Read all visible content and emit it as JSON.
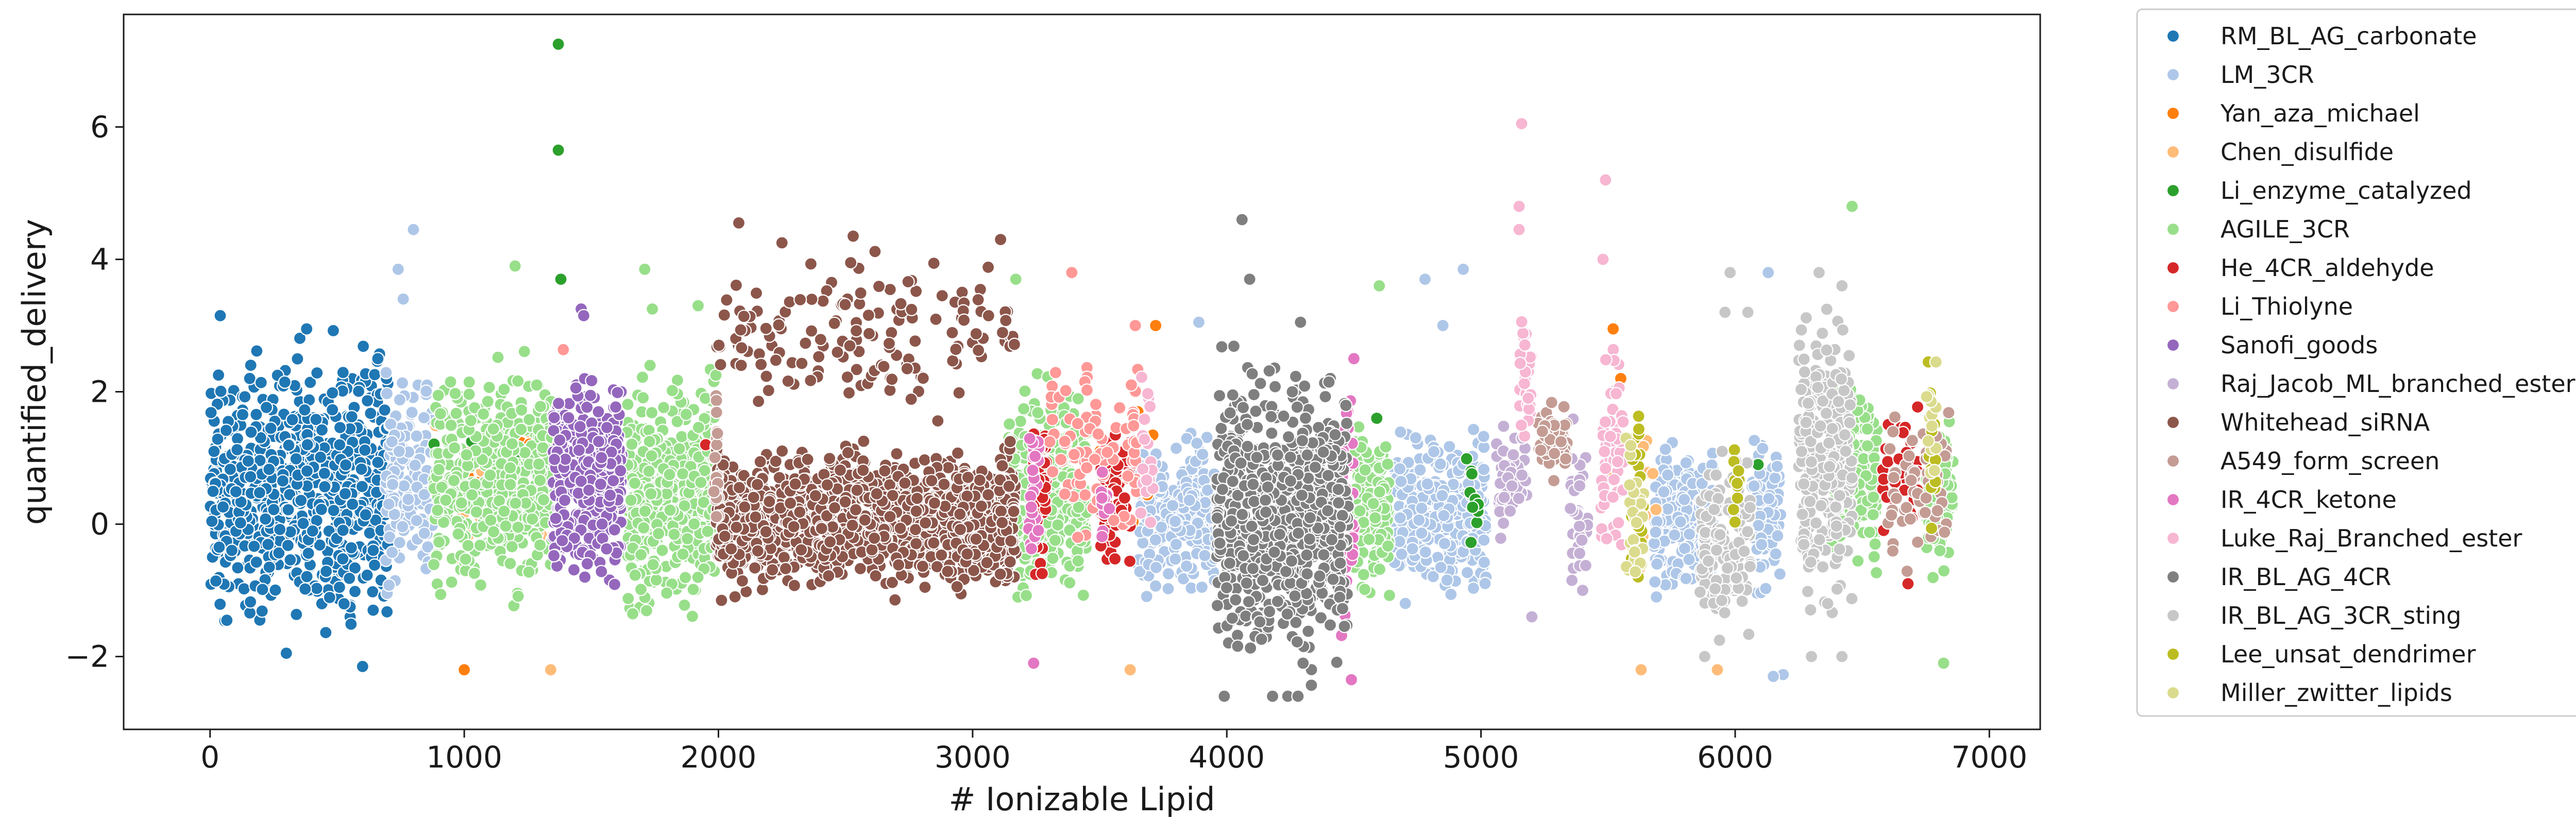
{
  "chart_data": {
    "type": "scatter",
    "title": "",
    "xlabel": "# Ionizable Lipid",
    "ylabel": "quantified_delivery",
    "xlim": [
      -340,
      7200
    ],
    "ylim": [
      -3.1,
      7.7
    ],
    "xticks": [
      0,
      1000,
      2000,
      3000,
      4000,
      5000,
      6000,
      7000
    ],
    "yticks": [
      -2,
      0,
      2,
      4,
      6
    ],
    "xtick_labels": [
      "0",
      "1000",
      "2000",
      "3000",
      "4000",
      "5000",
      "6000",
      "7000"
    ],
    "ytick_labels": [
      "−2",
      "0",
      "2",
      "4",
      "6"
    ],
    "grid": false,
    "legend_position": "outside-right",
    "marker_edge_color": "#ffffff",
    "series": [
      {
        "name": "RM_BL_AG_carbonate",
        "color": "#1f77b4",
        "point_count": 700,
        "segments": [
          {
            "x": [
              0,
              700
            ],
            "y": [
              -2.1,
              3.1
            ],
            "count": 700
          }
        ],
        "highlights": [
          [
            40,
            3.15
          ],
          [
            380,
            2.95
          ],
          [
            160,
            2.4
          ],
          [
            600,
            -2.15
          ],
          [
            300,
            -1.95
          ],
          [
            660,
            2.5
          ]
        ]
      },
      {
        "name": "LM_3CR",
        "color": "#aec7e8",
        "point_count": 1200,
        "segments": [
          {
            "x": [
              690,
              880
            ],
            "y": [
              -1.3,
              2.6
            ],
            "count": 160
          },
          {
            "x": [
              3650,
              3960
            ],
            "y": [
              -1.4,
              1.7
            ],
            "count": 260
          },
          {
            "x": [
              4650,
              5020
            ],
            "y": [
              -1.3,
              1.6
            ],
            "count": 360
          },
          {
            "x": [
              5680,
              5920
            ],
            "y": [
              -1.4,
              1.5
            ],
            "count": 230
          },
          {
            "x": [
              6060,
              6180
            ],
            "y": [
              -1.3,
              1.6
            ],
            "count": 90
          },
          {
            "x": [
              6170,
              6190
            ],
            "y": [
              -2.4,
              -2.2
            ],
            "count": 2
          }
        ],
        "highlights": [
          [
            800,
            4.45
          ],
          [
            740,
            3.85
          ],
          [
            760,
            3.4
          ],
          [
            4780,
            3.7
          ],
          [
            4930,
            3.85
          ],
          [
            6130,
            3.8
          ],
          [
            3890,
            3.05
          ],
          [
            4850,
            3.0
          ],
          [
            6150,
            -2.3
          ]
        ]
      },
      {
        "name": "Yan_aza_michael",
        "color": "#ff7f0e",
        "point_count": 40,
        "segments": [
          {
            "x": [
              880,
              1330
            ],
            "y": [
              -1.0,
              2.3
            ],
            "count": 22
          },
          {
            "x": [
              3500,
              3720
            ],
            "y": [
              -1.0,
              2.2
            ],
            "count": 10
          }
        ],
        "highlights": [
          [
            1000,
            -2.2
          ],
          [
            1330,
            1.5
          ],
          [
            3720,
            3.0
          ],
          [
            5520,
            2.95
          ],
          [
            5550,
            2.2
          ],
          [
            5520,
            0.7
          ]
        ]
      },
      {
        "name": "Chen_disulfide",
        "color": "#ffbb78",
        "point_count": 40,
        "segments": [
          {
            "x": [
              880,
              1350
            ],
            "y": [
              -1.1,
              2.2
            ],
            "count": 24
          },
          {
            "x": [
              5600,
              5700
            ],
            "y": [
              -1.2,
              2.0
            ],
            "count": 10
          }
        ],
        "highlights": [
          [
            1340,
            -2.2
          ],
          [
            3620,
            -2.2
          ],
          [
            5630,
            -2.2
          ],
          [
            5930,
            -2.2
          ]
        ]
      },
      {
        "name": "Li_enzyme_catalyzed",
        "color": "#2ca02c",
        "point_count": 35,
        "segments": [
          {
            "x": [
              880,
              1330
            ],
            "y": [
              -0.5,
              1.8
            ],
            "count": 10
          },
          {
            "x": [
              4930,
              4990
            ],
            "y": [
              -0.5,
              1.5
            ],
            "count": 10
          }
        ],
        "highlights": [
          [
            1370,
            7.25
          ],
          [
            1370,
            5.65
          ],
          [
            1380,
            3.7
          ],
          [
            1380,
            1.6
          ],
          [
            1290,
            2.1
          ],
          [
            4590,
            1.6
          ],
          [
            6090,
            0.9
          ]
        ]
      },
      {
        "name": "AGILE_3CR",
        "color": "#98df8a",
        "point_count": 1700,
        "segments": [
          {
            "x": [
              880,
              1350
            ],
            "y": [
              -1.5,
              2.8
            ],
            "count": 420
          },
          {
            "x": [
              1640,
              1990
            ],
            "y": [
              -1.8,
              2.6
            ],
            "count": 430
          },
          {
            "x": [
              3140,
              3450
            ],
            "y": [
              -1.5,
              2.5
            ],
            "count": 330
          },
          {
            "x": [
              4500,
              4640
            ],
            "y": [
              -1.4,
              2.0
            ],
            "count": 140
          },
          {
            "x": [
              6380,
              6560
            ],
            "y": [
              -1.0,
              2.5
            ],
            "count": 180
          },
          {
            "x": [
              6750,
              6860
            ],
            "y": [
              -1.0,
              1.8
            ],
            "count": 90
          }
        ],
        "highlights": [
          [
            1200,
            3.9
          ],
          [
            1710,
            3.85
          ],
          [
            1740,
            3.25
          ],
          [
            1920,
            3.3
          ],
          [
            4600,
            3.6
          ],
          [
            6460,
            4.8
          ],
          [
            6820,
            -2.1
          ],
          [
            3170,
            3.7
          ],
          [
            1990,
            2.25
          ]
        ]
      },
      {
        "name": "He_4CR_aldehyde",
        "color": "#d62728",
        "point_count": 140,
        "segments": [
          {
            "x": [
              3240,
              3290
            ],
            "y": [
              -1.1,
              2.0
            ],
            "count": 40
          },
          {
            "x": [
              3500,
              3620
            ],
            "y": [
              -1.0,
              2.0
            ],
            "count": 60
          },
          {
            "x": [
              6580,
              6720
            ],
            "y": [
              -0.5,
              2.0
            ],
            "count": 30
          }
        ],
        "highlights": [
          [
            1950,
            1.2
          ],
          [
            6680,
            -0.9
          ]
        ]
      },
      {
        "name": "Li_Thiolyne",
        "color": "#ff9896",
        "point_count": 110,
        "segments": [
          {
            "x": [
              3300,
              3650
            ],
            "y": [
              -0.8,
              2.8
            ],
            "count": 90
          },
          {
            "x": [
              1380,
              1400
            ],
            "y": [
              2.6,
              2.7
            ],
            "count": 1
          }
        ],
        "highlights": [
          [
            3390,
            3.8
          ],
          [
            3640,
            3.0
          ]
        ]
      },
      {
        "name": "Sanofi_goods",
        "color": "#9467bd",
        "point_count": 400,
        "segments": [
          {
            "x": [
              1350,
              1620
            ],
            "y": [
              -1.2,
              2.5
            ],
            "count": 400
          }
        ],
        "highlights": [
          [
            1460,
            3.25
          ],
          [
            1470,
            3.15
          ]
        ]
      },
      {
        "name": "Raj_Jacob_ML_branched_ester",
        "color": "#c5b0d5",
        "point_count": 80,
        "segments": [
          {
            "x": [
              5060,
              5180
            ],
            "y": [
              -0.6,
              1.9
            ],
            "count": 50
          },
          {
            "x": [
              5350,
              5420
            ],
            "y": [
              -1.2,
              1.8
            ],
            "count": 30
          }
        ],
        "highlights": [
          [
            5400,
            -1.0
          ],
          [
            5200,
            -1.4
          ]
        ]
      },
      {
        "name": "Whitehead_siRNA",
        "color": "#8c564b",
        "point_count": 1400,
        "segments": [
          {
            "x": [
              1990,
              3170
            ],
            "y": [
              -1.25,
              1.4
            ],
            "count": 1250
          },
          {
            "x": [
              1990,
              3170
            ],
            "y": [
              1.4,
              4.4
            ],
            "count": 150
          }
        ],
        "highlights": [
          [
            2080,
            4.55
          ],
          [
            2250,
            4.25
          ],
          [
            2530,
            4.35
          ],
          [
            3110,
            4.3
          ]
        ]
      },
      {
        "name": "A549_form_screen",
        "color": "#c49c94",
        "point_count": 140,
        "segments": [
          {
            "x": [
              1980,
              2000
            ],
            "y": [
              -1.0,
              2.3
            ],
            "count": 20
          },
          {
            "x": [
              5220,
              5340
            ],
            "y": [
              0.6,
              1.9
            ],
            "count": 60
          },
          {
            "x": [
              6600,
              6840
            ],
            "y": [
              -1.0,
              2.0
            ],
            "count": 60
          }
        ],
        "highlights": []
      },
      {
        "name": "IR_4CR_ketone",
        "color": "#e377c2",
        "point_count": 90,
        "segments": [
          {
            "x": [
              3220,
              3260
            ],
            "y": [
              -1.2,
              2.0
            ],
            "count": 25
          },
          {
            "x": [
              4450,
              4500
            ],
            "y": [
              -2.3,
              2.5
            ],
            "count": 40
          },
          {
            "x": [
              3500,
              3540
            ],
            "y": [
              -1.0,
              1.0
            ],
            "count": 10
          }
        ],
        "highlights": [
          [
            3240,
            -2.1
          ],
          [
            4490,
            -2.35
          ],
          [
            4500,
            2.5
          ],
          [
            5500,
            1.0
          ]
        ]
      },
      {
        "name": "Luke_Raj_Branched_ester",
        "color": "#f7b6d2",
        "point_count": 150,
        "segments": [
          {
            "x": [
              5150,
              5200
            ],
            "y": [
              1.0,
              3.5
            ],
            "count": 30
          },
          {
            "x": [
              5470,
              5560
            ],
            "y": [
              -1.0,
              3.0
            ],
            "count": 60
          },
          {
            "x": [
              3660,
              3720
            ],
            "y": [
              -0.8,
              2.5
            ],
            "count": 20
          }
        ],
        "highlights": [
          [
            5160,
            6.05
          ],
          [
            5150,
            4.8
          ],
          [
            5490,
            5.2
          ],
          [
            5480,
            4.0
          ],
          [
            5150,
            4.45
          ]
        ]
      },
      {
        "name": "IR_BL_AG_4CR",
        "color": "#7f7f7f",
        "point_count": 800,
        "segments": [
          {
            "x": [
              3960,
              4480
            ],
            "y": [
              -2.6,
              2.8
            ],
            "count": 800
          }
        ],
        "highlights": [
          [
            4060,
            4.6
          ],
          [
            4090,
            3.7
          ],
          [
            4290,
            3.05
          ],
          [
            3990,
            -2.6
          ],
          [
            4180,
            -2.6
          ],
          [
            4240,
            -2.6
          ],
          [
            4280,
            -2.6
          ],
          [
            4300,
            -2.1
          ]
        ]
      },
      {
        "name": "IR_BL_AG_3CR_sting",
        "color": "#c7c7c7",
        "point_count": 450,
        "segments": [
          {
            "x": [
              5860,
              6060
            ],
            "y": [
              -2.0,
              1.3
            ],
            "count": 150
          },
          {
            "x": [
              6250,
              6460
            ],
            "y": [
              -2.0,
              3.8
            ],
            "count": 260
          }
        ],
        "highlights": [
          [
            5980,
            3.8
          ],
          [
            5960,
            3.2
          ],
          [
            6050,
            3.2
          ],
          [
            6330,
            3.8
          ],
          [
            6420,
            3.6
          ],
          [
            5880,
            -2.0
          ],
          [
            6300,
            -2.0
          ],
          [
            6420,
            -2.0
          ]
        ]
      },
      {
        "name": "Lee_unsat_dendrimer",
        "color": "#bcbd22",
        "point_count": 60,
        "segments": [
          {
            "x": [
              5590,
              5640
            ],
            "y": [
              -1.4,
              2.2
            ],
            "count": 25
          },
          {
            "x": [
              5990,
              6020
            ],
            "y": [
              -0.5,
              1.3
            ],
            "count": 10
          },
          {
            "x": [
              6760,
              6790
            ],
            "y": [
              -0.5,
              2.4
            ],
            "count": 10
          }
        ],
        "highlights": [
          [
            6760,
            2.45
          ]
        ]
      },
      {
        "name": "Miller_zwitter_lipids",
        "color": "#dbdb8d",
        "point_count": 50,
        "segments": [
          {
            "x": [
              5570,
              5640
            ],
            "y": [
              -1.4,
              1.9
            ],
            "count": 25
          },
          {
            "x": [
              6750,
              6790
            ],
            "y": [
              -0.5,
              2.5
            ],
            "count": 12
          }
        ],
        "highlights": [
          [
            6790,
            2.45
          ]
        ]
      }
    ]
  }
}
